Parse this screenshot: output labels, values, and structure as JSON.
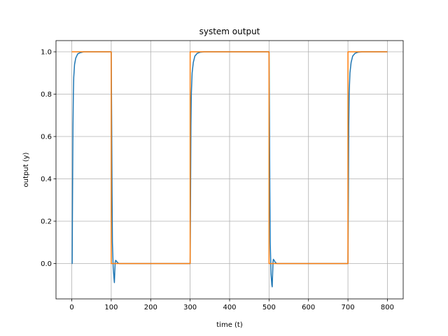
{
  "chart_data": {
    "type": "line",
    "title": "system output",
    "xlabel": "time (t)",
    "ylabel": "output (y)",
    "xlim": [
      -40,
      840
    ],
    "ylim": [
      -0.167,
      1.053
    ],
    "xticks": [
      0,
      100,
      200,
      300,
      400,
      500,
      600,
      700,
      800
    ],
    "yticks": [
      0.0,
      0.2,
      0.4,
      0.6,
      0.8,
      1.0
    ],
    "xtick_labels": [
      "0",
      "100",
      "200",
      "300",
      "400",
      "500",
      "600",
      "700",
      "800"
    ],
    "ytick_labels": [
      "0.0",
      "0.2",
      "0.4",
      "0.6",
      "0.8",
      "1.0"
    ],
    "grid": true,
    "series": [
      {
        "color": "#1f77b4",
        "points": [
          [
            0,
            0
          ],
          [
            1,
            0
          ],
          [
            2,
            0.35
          ],
          [
            3,
            0.65
          ],
          [
            4,
            0.8
          ],
          [
            5,
            0.88
          ],
          [
            7,
            0.94
          ],
          [
            10,
            0.97
          ],
          [
            15,
            0.99
          ],
          [
            20,
            0.995
          ],
          [
            30,
            1.0
          ],
          [
            100,
            1.0
          ],
          [
            101,
            0.7
          ],
          [
            102,
            0.35
          ],
          [
            103,
            0.1
          ],
          [
            105,
            -0.02
          ],
          [
            107,
            -0.07
          ],
          [
            108,
            -0.09
          ],
          [
            109,
            -0.04
          ],
          [
            110,
            0.005
          ],
          [
            111,
            0.015
          ],
          [
            113,
            0.012
          ],
          [
            116,
            0.004
          ],
          [
            120,
            0.0
          ],
          [
            300,
            0.0
          ],
          [
            301,
            0.3
          ],
          [
            302,
            0.65
          ],
          [
            303,
            0.8
          ],
          [
            305,
            0.9
          ],
          [
            308,
            0.95
          ],
          [
            312,
            0.98
          ],
          [
            318,
            0.993
          ],
          [
            325,
            0.998
          ],
          [
            335,
            1.0
          ],
          [
            500,
            1.0
          ],
          [
            501,
            0.7
          ],
          [
            502,
            0.35
          ],
          [
            503,
            0.1
          ],
          [
            505,
            -0.05
          ],
          [
            507,
            -0.1
          ],
          [
            508,
            -0.11
          ],
          [
            509,
            -0.05
          ],
          [
            510,
            0.005
          ],
          [
            511,
            0.02
          ],
          [
            513,
            0.015
          ],
          [
            516,
            0.005
          ],
          [
            520,
            0.0
          ],
          [
            700,
            0.0
          ],
          [
            701,
            0.3
          ],
          [
            702,
            0.65
          ],
          [
            703,
            0.8
          ],
          [
            705,
            0.9
          ],
          [
            708,
            0.95
          ],
          [
            712,
            0.98
          ],
          [
            718,
            0.993
          ],
          [
            725,
            0.998
          ],
          [
            735,
            1.0
          ],
          [
            800,
            1.0
          ]
        ]
      },
      {
        "color": "#ff7f0e",
        "points": [
          [
            0,
            1
          ],
          [
            100,
            1
          ],
          [
            100,
            0
          ],
          [
            300,
            0
          ],
          [
            300,
            1
          ],
          [
            500,
            1
          ],
          [
            500,
            0
          ],
          [
            700,
            0
          ],
          [
            700,
            1
          ],
          [
            800,
            1
          ]
        ]
      }
    ]
  }
}
